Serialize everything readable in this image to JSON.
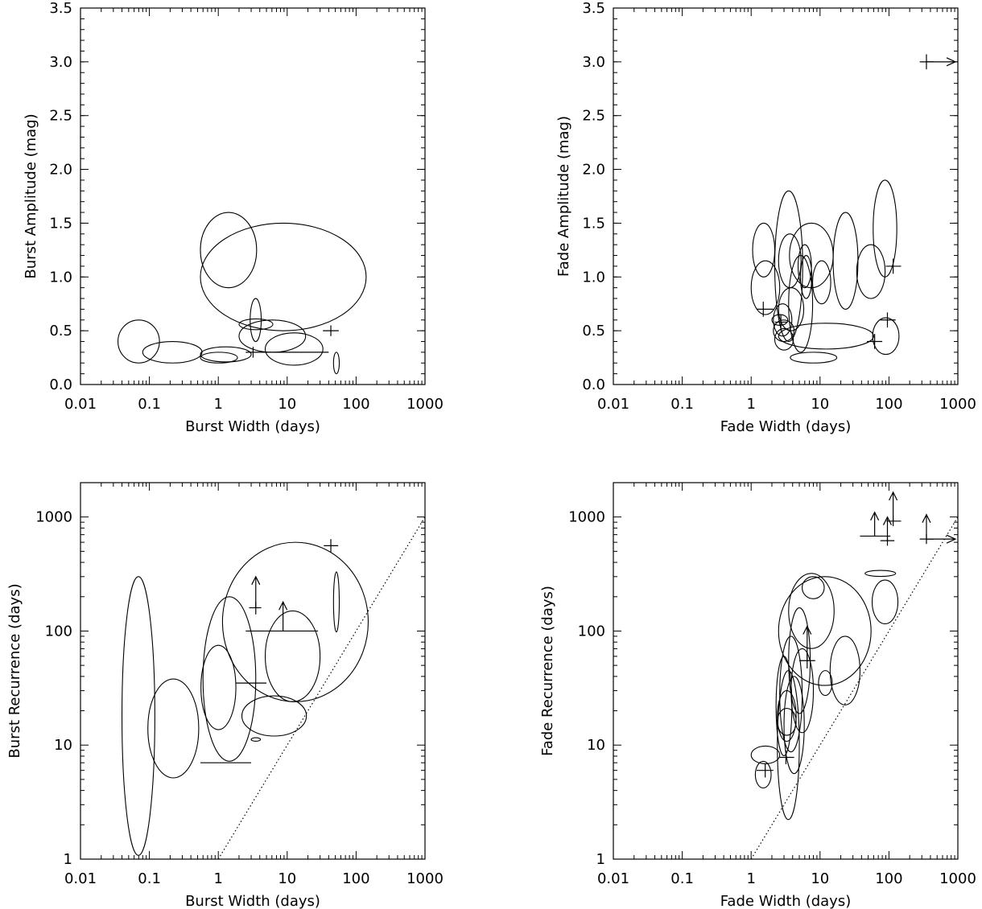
{
  "chart_data": [
    {
      "id": "burst-amplitude",
      "type": "scatter",
      "xlabel": "Burst Width (days)",
      "ylabel": "Burst Amplitude (mag)",
      "xscale": "log",
      "yscale": "linear",
      "xlim": [
        0.01,
        1000
      ],
      "ylim": [
        0,
        3.5
      ],
      "xticklabels": [
        "0.01",
        "0.1",
        "1",
        "10",
        "100",
        "1000"
      ],
      "yticks": [
        0,
        0.5,
        1,
        1.5,
        2,
        2.5,
        3,
        3.5
      ],
      "yticklabels": [
        "0.0",
        "0.5",
        "1.0",
        "1.5",
        "2.0",
        "2.5",
        "3.0",
        "3.5"
      ],
      "ellipses": [
        {
          "x": 0.07,
          "y": 0.4,
          "x_lo": 0.035,
          "x_hi": 0.14,
          "y_hi": 0.6
        },
        {
          "x": 0.22,
          "y": 0.3,
          "x_lo": 0.08,
          "x_hi": 0.58,
          "y_hi": 0.4
        },
        {
          "x": 1.4,
          "y": 1.25,
          "x_lo": 0.55,
          "x_hi": 3.6,
          "y_hi": 1.6
        },
        {
          "x": 8.7,
          "y": 1.0,
          "x_lo": 0.55,
          "x_hi": 140,
          "y_hi": 1.5
        },
        {
          "x": 1.0,
          "y": 0.28,
          "x_lo": 0.55,
          "x_hi": 3.0,
          "y_hi": 0.35
        },
        {
          "x": 1.0,
          "y": 0.25,
          "x_lo": 0.55,
          "x_hi": 1.9,
          "y_hi": 0.3
        },
        {
          "x": 3.5,
          "y": 0.56,
          "x_lo": 2.0,
          "x_hi": 6.2,
          "y_hi": 0.61
        },
        {
          "x": 3.5,
          "y": 0.6,
          "x_lo": 2.9,
          "x_hi": 4.2,
          "y_hi": 0.8
        },
        {
          "x": 6.0,
          "y": 0.45,
          "x_lo": 2.0,
          "x_hi": 18.5,
          "y_hi": 0.6
        },
        {
          "x": 12.5,
          "y": 0.33,
          "x_lo": 4.8,
          "x_hi": 33,
          "y_hi": 0.48
        },
        {
          "x": 52,
          "y": 0.2,
          "x_lo": 47,
          "x_hi": 57,
          "y_hi": 0.3
        }
      ],
      "points": [
        {
          "x": 3.2,
          "y": 0.3,
          "x_lo": 2.5,
          "x_hi": 40,
          "y_lo": 0.25,
          "y_hi": 0.35
        },
        {
          "x": 43,
          "y": 0.5,
          "x_lo": 33,
          "x_hi": 56,
          "y_lo": 0.45,
          "y_hi": 0.55
        }
      ]
    },
    {
      "id": "fade-amplitude",
      "type": "scatter",
      "xlabel": "Fade Width (days)",
      "ylabel": "Fade Amplitude (mag)",
      "xscale": "log",
      "yscale": "linear",
      "xlim": [
        0.01,
        1000
      ],
      "ylim": [
        0,
        3.5
      ],
      "xticklabels": [
        "0.01",
        "0.1",
        "1",
        "10",
        "100",
        "1000"
      ],
      "yticks": [
        0,
        0.5,
        1,
        1.5,
        2,
        2.5,
        3,
        3.5
      ],
      "yticklabels": [
        "0.0",
        "0.5",
        "1.0",
        "1.5",
        "2.0",
        "2.5",
        "3.0",
        "3.5"
      ],
      "ellipses": [
        {
          "x": 1.5,
          "y": 1.25,
          "x_lo": 1.05,
          "x_hi": 2.2,
          "y_hi": 1.5
        },
        {
          "x": 1.6,
          "y": 0.9,
          "x_lo": 1.0,
          "x_hi": 2.6,
          "y_hi": 1.15
        },
        {
          "x": 2.6,
          "y": 0.6,
          "x_lo": 2.0,
          "x_hi": 3.4,
          "y_hi": 0.65
        },
        {
          "x": 2.9,
          "y": 0.6,
          "x_lo": 2.1,
          "x_hi": 3.9,
          "y_hi": 0.75
        },
        {
          "x": 3.0,
          "y": 0.5,
          "x_lo": 2.1,
          "x_hi": 4.2,
          "y_hi": 0.6
        },
        {
          "x": 3.0,
          "y": 0.42,
          "x_lo": 2.2,
          "x_hi": 4.1,
          "y_hi": 0.52
        },
        {
          "x": 3.5,
          "y": 1.1,
          "x_lo": 2.2,
          "x_hi": 5.6,
          "y_hi": 1.8
        },
        {
          "x": 3.7,
          "y": 1.15,
          "x_lo": 2.5,
          "x_hi": 5.3,
          "y_hi": 1.4
        },
        {
          "x": 3.8,
          "y": 0.7,
          "x_lo": 2.5,
          "x_hi": 5.8,
          "y_hi": 0.9
        },
        {
          "x": 5.2,
          "y": 0.75,
          "x_lo": 3.5,
          "x_hi": 7.8,
          "y_hi": 1.2
        },
        {
          "x": 6.0,
          "y": 1.1,
          "x_lo": 4.8,
          "x_hi": 7.5,
          "y_hi": 1.3
        },
        {
          "x": 6.3,
          "y": 1.0,
          "x_lo": 5.2,
          "x_hi": 7.6,
          "y_hi": 1.2
        },
        {
          "x": 7.5,
          "y": 1.2,
          "x_lo": 3.6,
          "x_hi": 15.5,
          "y_hi": 1.5
        },
        {
          "x": 8.0,
          "y": 0.25,
          "x_lo": 3.7,
          "x_hi": 17.5,
          "y_hi": 0.3
        },
        {
          "x": 8.0,
          "y": 0.45,
          "x_lo": 2.5,
          "x_hi": 60,
          "y_hi": 0.57
        },
        {
          "x": 10.5,
          "y": 0.95,
          "x_lo": 7.8,
          "x_hi": 14.3,
          "y_hi": 1.15
        },
        {
          "x": 23.5,
          "y": 1.15,
          "x_lo": 15.5,
          "x_hi": 35.5,
          "y_hi": 1.6
        },
        {
          "x": 55,
          "y": 1.05,
          "x_lo": 34,
          "x_hi": 88,
          "y_hi": 1.3
        },
        {
          "x": 88,
          "y": 1.45,
          "x_lo": 59,
          "x_hi": 130,
          "y_hi": 1.9
        },
        {
          "x": 90,
          "y": 0.45,
          "x_lo": 58,
          "x_hi": 140,
          "y_hi": 0.62
        }
      ],
      "points": [
        {
          "x": 1.5,
          "y": 0.7,
          "x_lo": 1.2,
          "x_hi": 2.1,
          "y_lo": 0.63,
          "y_hi": 0.77
        },
        {
          "x": 2.7,
          "y": 0.58,
          "x_lo": 2.2,
          "x_hi": 3.4,
          "y_lo": 0.5,
          "y_hi": 0.65
        },
        {
          "x": 62,
          "y": 0.4,
          "x_lo": 48,
          "x_hi": 80,
          "y_lo": 0.33,
          "y_hi": 0.47
        },
        {
          "x": 95,
          "y": 0.6,
          "x_lo": 74,
          "x_hi": 125,
          "y_lo": 0.53,
          "y_hi": 0.67
        },
        {
          "x": 115,
          "y": 1.1,
          "x_lo": 90,
          "x_hi": 150,
          "y_lo": 1.03,
          "y_hi": 1.17
        },
        {
          "x": 350,
          "y": 3.0,
          "x_lo": 280,
          "x_hi": 450,
          "y_lo": 2.93,
          "y_hi": 3.07,
          "arrow_right": true
        }
      ]
    },
    {
      "id": "burst-recurrence",
      "type": "scatter",
      "xlabel": "Burst Width (days)",
      "ylabel": "Burst Recurrence (days)",
      "xscale": "log",
      "yscale": "log",
      "xlim": [
        0.01,
        1000
      ],
      "ylim": [
        1,
        2000
      ],
      "xticklabels": [
        "0.01",
        "0.1",
        "1",
        "10",
        "100",
        "1000"
      ],
      "yticks": [
        1,
        10,
        100,
        1000
      ],
      "yticklabels": [
        "1",
        "10",
        "100",
        "1000"
      ],
      "diagonal": {
        "from": 1,
        "to": 1000
      },
      "ellipses": [
        {
          "x": 0.07,
          "y": 18,
          "x_lo": 0.04,
          "x_hi": 0.12,
          "y_hi": 300
        },
        {
          "x": 0.22,
          "y": 14,
          "x_lo": 0.095,
          "x_hi": 0.52,
          "y_hi": 38
        },
        {
          "x": 1.45,
          "y": 38,
          "x_lo": 0.6,
          "x_hi": 3.5,
          "y_hi": 200
        },
        {
          "x": 1.0,
          "y": 32,
          "x_lo": 0.56,
          "x_hi": 1.8,
          "y_hi": 75
        },
        {
          "x": 8.7,
          "y": 120,
          "x_lo": 1.15,
          "x_hi": 150,
          "y_hi": 600
        },
        {
          "x": 12,
          "y": 60,
          "x_lo": 4.8,
          "x_hi": 30,
          "y_hi": 150
        },
        {
          "x": 6.5,
          "y": 18,
          "x_lo": 2.2,
          "x_hi": 19,
          "y_hi": 27
        },
        {
          "x": 3.5,
          "y": 11.2,
          "x_lo": 3.0,
          "x_hi": 4.1,
          "y_hi": 11.6
        },
        {
          "x": 52,
          "y": 180,
          "x_lo": 47,
          "x_hi": 57,
          "y_hi": 330
        }
      ],
      "points": [
        {
          "x": 1.1,
          "y": 7,
          "x_lo": 0.55,
          "x_hi": 3.0
        },
        {
          "x": 3.5,
          "y": 35,
          "x_lo": 1.8,
          "x_hi": 5.0
        },
        {
          "x": 3.5,
          "y": 160,
          "x_lo": 2.8,
          "x_hi": 4.2,
          "y_lo": 140,
          "y_hi": 180,
          "arrow_up_to": 300
        },
        {
          "x": 8.7,
          "y": 100,
          "x_lo": 2.5,
          "x_hi": 28,
          "arrow_up_to": 180
        },
        {
          "x": 43,
          "y": 560,
          "x_lo": 34,
          "x_hi": 55,
          "y_lo": 490,
          "y_hi": 640
        }
      ]
    },
    {
      "id": "fade-recurrence",
      "type": "scatter",
      "xlabel": "Fade Width (days)",
      "ylabel": "Fade Recurrence (days)",
      "xscale": "log",
      "yscale": "log",
      "xlim": [
        0.01,
        1000
      ],
      "ylim": [
        1,
        2000
      ],
      "xticklabels": [
        "0.01",
        "0.1",
        "1",
        "10",
        "100",
        "1000"
      ],
      "yticks": [
        1,
        10,
        100,
        1000
      ],
      "yticklabels": [
        "1",
        "10",
        "100",
        "1000"
      ],
      "diagonal": {
        "from": 1,
        "to": 1000
      },
      "ellipses": [
        {
          "x": 1.5,
          "y": 8.2,
          "x_lo": 1.0,
          "x_hi": 2.6,
          "y_hi": 9.8
        },
        {
          "x": 1.5,
          "y": 5.5,
          "x_lo": 1.15,
          "x_hi": 1.95,
          "y_hi": 7.2
        },
        {
          "x": 3.5,
          "y": 10,
          "x_lo": 2.4,
          "x_hi": 5.0,
          "y_hi": 45
        },
        {
          "x": 3.0,
          "y": 22,
          "x_lo": 2.3,
          "x_hi": 3.9,
          "y_hi": 60
        },
        {
          "x": 3.3,
          "y": 18,
          "x_lo": 2.4,
          "x_hi": 4.5,
          "y_hi": 30
        },
        {
          "x": 3.3,
          "y": 16,
          "x_lo": 2.4,
          "x_hi": 4.5,
          "y_hi": 21
        },
        {
          "x": 3.8,
          "y": 28,
          "x_lo": 2.6,
          "x_hi": 5.5,
          "y_hi": 90
        },
        {
          "x": 4.2,
          "y": 15,
          "x_lo": 3.0,
          "x_hi": 5.9,
          "y_hi": 40
        },
        {
          "x": 5.0,
          "y": 55,
          "x_lo": 3.5,
          "x_hi": 7.2,
          "y_hi": 160
        },
        {
          "x": 5.5,
          "y": 30,
          "x_lo": 3.8,
          "x_hi": 8.0,
          "y_hi": 70
        },
        {
          "x": 7.5,
          "y": 150,
          "x_lo": 3.5,
          "x_hi": 16,
          "y_hi": 320
        },
        {
          "x": 8.0,
          "y": 240,
          "x_lo": 5.5,
          "x_hi": 11.5,
          "y_hi": 300
        },
        {
          "x": 12,
          "y": 100,
          "x_lo": 2.5,
          "x_hi": 55,
          "y_hi": 300
        },
        {
          "x": 12,
          "y": 35,
          "x_lo": 9.5,
          "x_hi": 15,
          "y_hi": 45
        },
        {
          "x": 23,
          "y": 45,
          "x_lo": 14,
          "x_hi": 38,
          "y_hi": 90
        },
        {
          "x": 75,
          "y": 320,
          "x_lo": 45,
          "x_hi": 125,
          "y_hi": 340
        },
        {
          "x": 88,
          "y": 180,
          "x_lo": 57,
          "x_hi": 135,
          "y_hi": 280
        }
      ],
      "points": [
        {
          "x": 1.6,
          "y": 6,
          "x_lo": 1.2,
          "x_hi": 2.1,
          "y_lo": 5.2,
          "y_hi": 6.9
        },
        {
          "x": 3.2,
          "y": 7.8,
          "x_lo": 2.6,
          "x_hi": 4.2,
          "y_lo": 6.8,
          "y_hi": 9
        },
        {
          "x": 6.5,
          "y": 55,
          "x_lo": 5.0,
          "x_hi": 8.5,
          "y_lo": 47,
          "y_hi": 65,
          "arrow_up_to": 110
        },
        {
          "x": 62,
          "y": 680,
          "x_lo": 38,
          "x_hi": 105,
          "arrow_up_to": 1100
        },
        {
          "x": 95,
          "y": 620,
          "x_lo": 75,
          "x_hi": 120,
          "y_lo": 560,
          "y_hi": 690,
          "arrow_up_to": 1000
        },
        {
          "x": 115,
          "y": 920,
          "x_lo": 92,
          "x_hi": 150,
          "y_lo": 830,
          "y_hi": 1020,
          "arrow_up_to": 1650
        },
        {
          "x": 350,
          "y": 640,
          "x_lo": 280,
          "x_hi": 450,
          "y_lo": 580,
          "y_hi": 710,
          "arrow_up_to": 1050,
          "arrow_right": true
        }
      ]
    }
  ]
}
